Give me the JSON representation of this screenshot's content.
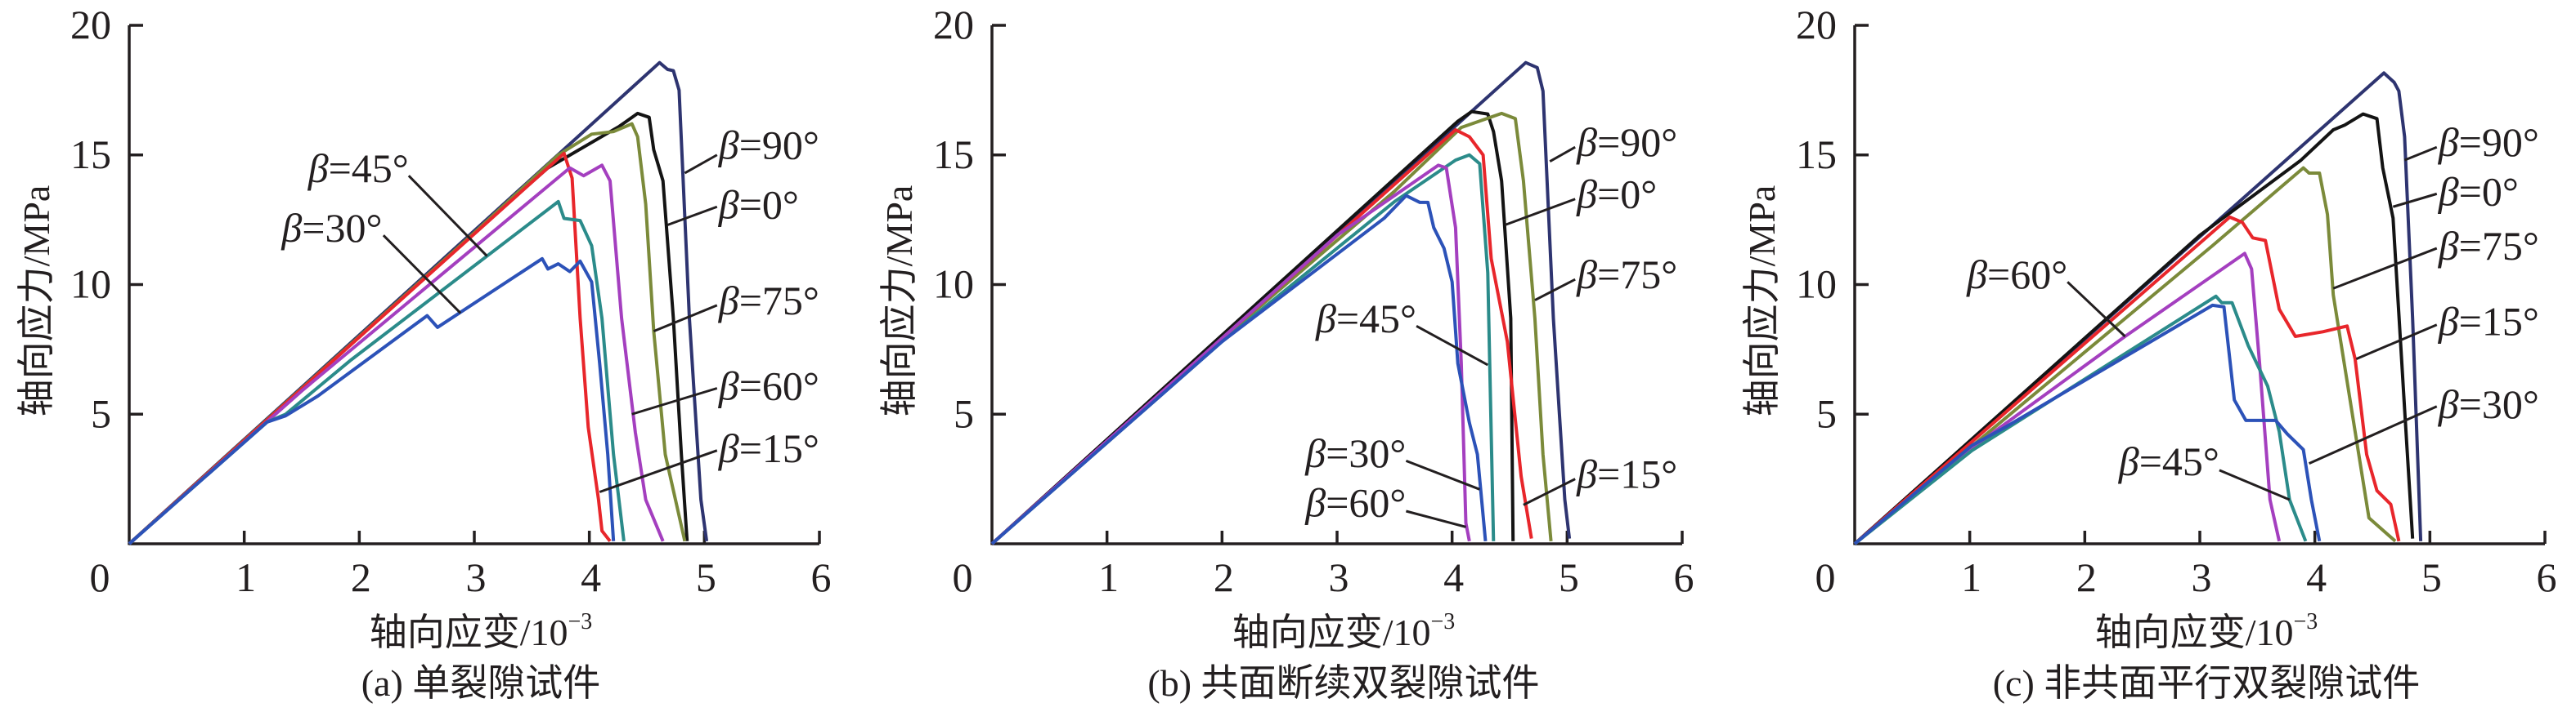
{
  "chart_data": [
    {
      "type": "line",
      "caption": "(a) 单裂隙试件",
      "xlabel": "轴向应变/10",
      "xlabel_exp": "−3",
      "ylabel": "轴向应力/MPa",
      "xlim": [
        0,
        6
      ],
      "ylim": [
        0,
        20
      ],
      "xticks": [
        "0",
        "1",
        "2",
        "3",
        "4",
        "5",
        "6"
      ],
      "yticks": [
        "5",
        "10",
        "15",
        "20"
      ],
      "grid": false,
      "series": [
        {
          "name": "β=90°",
          "color": "#2e3470",
          "points": [
            [
              0,
              0
            ],
            [
              4.61,
              18.56
            ],
            [
              4.68,
              18.3
            ],
            [
              4.73,
              18.25
            ],
            [
              4.78,
              17.5
            ],
            [
              4.87,
              8.7
            ],
            [
              4.97,
              1.7
            ],
            [
              5.02,
              0.1
            ]
          ]
        },
        {
          "name": "β=0°",
          "color": "#141414",
          "points": [
            [
              0,
              0
            ],
            [
              3.0,
              12.0
            ],
            [
              3.64,
              14.5
            ],
            [
              4.26,
              16.1
            ],
            [
              4.42,
              16.6
            ],
            [
              4.52,
              16.45
            ],
            [
              4.56,
              15.2
            ],
            [
              4.64,
              14.0
            ],
            [
              4.73,
              8.7
            ],
            [
              4.8,
              3.45
            ],
            [
              4.85,
              0.1
            ]
          ]
        },
        {
          "name": "β=75°",
          "color": "#7b8a3a",
          "points": [
            [
              0,
              0
            ],
            [
              3.0,
              12.0
            ],
            [
              3.73,
              15.0
            ],
            [
              4.02,
              15.8
            ],
            [
              4.21,
              15.9
            ],
            [
              4.37,
              16.2
            ],
            [
              4.42,
              15.7
            ],
            [
              4.49,
              13.1
            ],
            [
              4.56,
              8.2
            ],
            [
              4.66,
              3.45
            ],
            [
              4.83,
              0.1
            ]
          ]
        },
        {
          "name": "β=15°",
          "color": "#e8262b",
          "points": [
            [
              0,
              0
            ],
            [
              3.78,
              15.06
            ],
            [
              3.85,
              14.1
            ],
            [
              3.92,
              8.7
            ],
            [
              3.99,
              4.5
            ],
            [
              4.08,
              1.7
            ],
            [
              4.11,
              0.5
            ],
            [
              4.18,
              0.1
            ]
          ]
        },
        {
          "name": "β=60°",
          "color": "#a43fbf",
          "points": [
            [
              0,
              0
            ],
            [
              1.5,
              5.9
            ],
            [
              3.83,
              14.5
            ],
            [
              3.95,
              14.2
            ],
            [
              4.11,
              14.6
            ],
            [
              4.18,
              14.0
            ],
            [
              4.28,
              8.7
            ],
            [
              4.4,
              4.3
            ],
            [
              4.49,
              1.7
            ],
            [
              4.64,
              0.1
            ]
          ]
        },
        {
          "name": "β=45°",
          "color": "#2b8b8a",
          "points": [
            [
              0,
              0
            ],
            [
              1.2,
              4.7
            ],
            [
              1.36,
              5.0
            ],
            [
              1.93,
              7.1
            ],
            [
              3.73,
              13.2
            ],
            [
              3.78,
              12.55
            ],
            [
              3.92,
              12.47
            ],
            [
              4.02,
              11.5
            ],
            [
              4.11,
              8.7
            ],
            [
              4.21,
              3.45
            ],
            [
              4.3,
              0.1
            ]
          ]
        },
        {
          "name": "β=30°",
          "color": "#2c52b8",
          "points": [
            [
              0,
              0
            ],
            [
              1.2,
              4.7
            ],
            [
              1.36,
              4.94
            ],
            [
              1.64,
              5.7
            ],
            [
              2.59,
              8.8
            ],
            [
              2.68,
              8.35
            ],
            [
              3.59,
              11.0
            ],
            [
              3.64,
              10.6
            ],
            [
              3.73,
              10.8
            ],
            [
              3.83,
              10.5
            ],
            [
              3.92,
              10.9
            ],
            [
              4.02,
              10.1
            ],
            [
              4.09,
              6.95
            ],
            [
              4.16,
              3.45
            ],
            [
              4.21,
              0.1
            ]
          ]
        }
      ]
    },
    {
      "type": "line",
      "caption": "(b) 共面断续双裂隙试件",
      "xlabel": "轴向应变/10",
      "xlabel_exp": "−3",
      "ylabel": "轴向应力/MPa",
      "xlim": [
        0,
        6
      ],
      "ylim": [
        0,
        20
      ],
      "xticks": [
        "0",
        "1",
        "2",
        "3",
        "4",
        "5",
        "6"
      ],
      "yticks": [
        "5",
        "10",
        "15",
        "20"
      ],
      "grid": false,
      "series": [
        {
          "name": "β=90°",
          "color": "#2e3470",
          "points": [
            [
              0,
              0
            ],
            [
              4.64,
              18.56
            ],
            [
              4.74,
              18.37
            ],
            [
              4.79,
              17.46
            ],
            [
              4.88,
              8.7
            ],
            [
              4.98,
              1.7
            ],
            [
              5.02,
              0.2
            ]
          ]
        },
        {
          "name": "β=0°",
          "color": "#141414",
          "points": [
            [
              0,
              0
            ],
            [
              4.05,
              16.3
            ],
            [
              4.17,
              16.67
            ],
            [
              4.31,
              16.58
            ],
            [
              4.36,
              15.9
            ],
            [
              4.43,
              14.0
            ],
            [
              4.51,
              8.7
            ],
            [
              4.53,
              0.1
            ]
          ]
        },
        {
          "name": "β=75°",
          "color": "#7b8a3a",
          "points": [
            [
              0,
              0
            ],
            [
              2.0,
              7.9
            ],
            [
              3.5,
              13.6
            ],
            [
              4.08,
              16.06
            ],
            [
              4.43,
              16.6
            ],
            [
              4.55,
              16.4
            ],
            [
              4.62,
              14.0
            ],
            [
              4.72,
              8.7
            ],
            [
              4.79,
              3.45
            ],
            [
              4.86,
              0.1
            ]
          ]
        },
        {
          "name": "β=15°",
          "color": "#e8262b",
          "points": [
            [
              0,
              0
            ],
            [
              4.03,
              15.97
            ],
            [
              4.15,
              15.7
            ],
            [
              4.27,
              15.0
            ],
            [
              4.34,
              11.0
            ],
            [
              4.48,
              7.8
            ],
            [
              4.6,
              2.6
            ],
            [
              4.69,
              0.2
            ]
          ]
        },
        {
          "name": "β=45°",
          "color": "#2b8b8a",
          "points": [
            [
              0,
              0
            ],
            [
              2.0,
              7.8
            ],
            [
              3.5,
              13.2
            ],
            [
              4.03,
              14.8
            ],
            [
              4.15,
              15.0
            ],
            [
              4.24,
              14.66
            ],
            [
              4.31,
              10.45
            ],
            [
              4.36,
              0.1
            ]
          ]
        },
        {
          "name": "β=60°",
          "color": "#a43fbf",
          "points": [
            [
              0,
              0
            ],
            [
              3.0,
              11.9
            ],
            [
              3.88,
              14.6
            ],
            [
              3.95,
              14.5
            ],
            [
              4.03,
              12.2
            ],
            [
              4.08,
              6.95
            ],
            [
              4.12,
              0.8
            ],
            [
              4.15,
              0.1
            ]
          ]
        },
        {
          "name": "β=30°",
          "color": "#2c52b8",
          "points": [
            [
              0,
              0
            ],
            [
              2.0,
              7.8
            ],
            [
              3.41,
              12.56
            ],
            [
              3.6,
              13.43
            ],
            [
              3.72,
              13.17
            ],
            [
              3.79,
              13.17
            ],
            [
              3.84,
              12.2
            ],
            [
              3.93,
              11.4
            ],
            [
              4.0,
              10.1
            ],
            [
              4.05,
              6.95
            ],
            [
              4.15,
              4.67
            ],
            [
              4.22,
              3.45
            ],
            [
              4.29,
              0.1
            ]
          ]
        }
      ]
    },
    {
      "type": "line",
      "caption": "(c) 非共面平行双裂隙试件",
      "xlabel": "轴向应变/10",
      "xlabel_exp": "−3",
      "ylabel": "轴向应力/MPa",
      "xlim": [
        0,
        6
      ],
      "ylim": [
        0,
        20
      ],
      "xticks": [
        "0",
        "1",
        "2",
        "3",
        "4",
        "5",
        "6"
      ],
      "yticks": [
        "5",
        "10",
        "15",
        "20"
      ],
      "grid": false,
      "series": [
        {
          "name": "β=90°",
          "color": "#2e3470",
          "points": [
            [
              0,
              0
            ],
            [
              4.6,
              18.16
            ],
            [
              4.69,
              17.8
            ],
            [
              4.73,
              17.46
            ],
            [
              4.78,
              15.7
            ],
            [
              4.85,
              8.7
            ],
            [
              4.92,
              0.1
            ]
          ]
        },
        {
          "name": "β=0°",
          "color": "#141414",
          "points": [
            [
              0,
              0
            ],
            [
              3.0,
              11.9
            ],
            [
              3.88,
              14.8
            ],
            [
              4.16,
              15.97
            ],
            [
              4.26,
              16.15
            ],
            [
              4.42,
              16.58
            ],
            [
              4.54,
              16.4
            ],
            [
              4.59,
              14.5
            ],
            [
              4.68,
              12.56
            ],
            [
              4.78,
              5.2
            ],
            [
              4.85,
              0.2
            ]
          ]
        },
        {
          "name": "β=75°",
          "color": "#7b8a3a",
          "points": [
            [
              0,
              0
            ],
            [
              3.11,
              11.5
            ],
            [
              3.9,
              14.5
            ],
            [
              3.95,
              14.3
            ],
            [
              4.04,
              14.3
            ],
            [
              4.11,
              12.7
            ],
            [
              4.16,
              9.6
            ],
            [
              4.35,
              4.33
            ],
            [
              4.47,
              1.0
            ],
            [
              4.7,
              0.1
            ]
          ]
        },
        {
          "name": "β=15°",
          "color": "#e8262b",
          "points": [
            [
              0,
              0
            ],
            [
              3.26,
              12.6
            ],
            [
              3.37,
              12.4
            ],
            [
              3.46,
              11.8
            ],
            [
              3.57,
              11.7
            ],
            [
              3.69,
              9.05
            ],
            [
              3.83,
              8.0
            ],
            [
              4.07,
              8.18
            ],
            [
              4.28,
              8.4
            ],
            [
              4.35,
              7.13
            ],
            [
              4.45,
              3.45
            ],
            [
              4.54,
              2.05
            ],
            [
              4.66,
              1.52
            ],
            [
              4.73,
              0.1
            ]
          ]
        },
        {
          "name": "β=60°",
          "color": "#a43fbf",
          "points": [
            [
              0,
              0
            ],
            [
              1.16,
              4.15
            ],
            [
              2.35,
              8.0
            ],
            [
              3.39,
              11.2
            ],
            [
              3.45,
              10.6
            ],
            [
              3.52,
              6.95
            ],
            [
              3.61,
              1.7
            ],
            [
              3.69,
              0.1
            ]
          ]
        },
        {
          "name": "β=45°",
          "color": "#2b8b8a",
          "points": [
            [
              0,
              0
            ],
            [
              1.02,
              3.6
            ],
            [
              3.14,
              9.55
            ],
            [
              3.19,
              9.3
            ],
            [
              3.28,
              9.3
            ],
            [
              3.42,
              7.65
            ],
            [
              3.59,
              6.08
            ],
            [
              3.69,
              4.33
            ],
            [
              3.78,
              1.7
            ],
            [
              3.92,
              0.1
            ]
          ]
        },
        {
          "name": "β=30°",
          "color": "#2c52b8",
          "points": [
            [
              0,
              0
            ],
            [
              1.02,
              3.8
            ],
            [
              1.31,
              4.5
            ],
            [
              3.11,
              9.2
            ],
            [
              3.21,
              9.14
            ],
            [
              3.3,
              5.55
            ],
            [
              3.4,
              4.76
            ],
            [
              3.66,
              4.76
            ],
            [
              3.76,
              4.24
            ],
            [
              3.9,
              3.63
            ],
            [
              3.97,
              1.7
            ],
            [
              4.04,
              0.1
            ]
          ]
        }
      ]
    }
  ]
}
